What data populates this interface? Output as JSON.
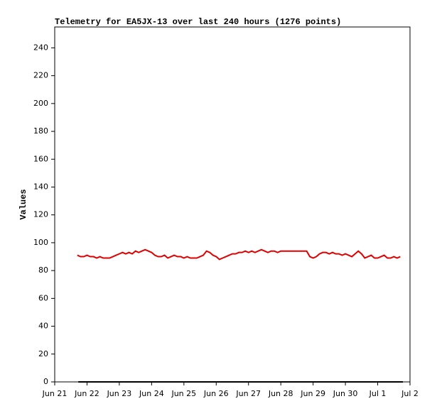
{
  "chart_data": {
    "type": "line",
    "title": "Telemetry for EA5JX-13 over last 240 hours (1276 points)",
    "y_label": "Values",
    "xlim": [
      0,
      11
    ],
    "xticks": [
      {
        "value": 0,
        "label": "Jun 21"
      },
      {
        "value": 1,
        "label": "Jun 22"
      },
      {
        "value": 2,
        "label": "Jun 23"
      },
      {
        "value": 3,
        "label": "Jun 24"
      },
      {
        "value": 4,
        "label": "Jun 25"
      },
      {
        "value": 5,
        "label": "Jun 26"
      },
      {
        "value": 6,
        "label": "Jun 27"
      },
      {
        "value": 7,
        "label": "Jun 28"
      },
      {
        "value": 8,
        "label": "Jun 29"
      },
      {
        "value": 9,
        "label": "Jun 30"
      },
      {
        "value": 10,
        "label": "Jul 1"
      },
      {
        "value": 11,
        "label": "Jul 2"
      }
    ],
    "ylim": [
      0,
      255
    ],
    "yticks": [
      0,
      20,
      40,
      60,
      80,
      100,
      120,
      140,
      160,
      180,
      200,
      220,
      240
    ],
    "series": [
      {
        "color": "#e00000",
        "x": [
          0.7,
          0.8,
          0.9,
          1.0,
          1.1,
          1.2,
          1.3,
          1.4,
          1.5,
          1.6,
          1.7,
          1.8,
          1.9,
          2.0,
          2.1,
          2.2,
          2.3,
          2.4,
          2.5,
          2.6,
          2.7,
          2.8,
          2.9,
          3.0,
          3.1,
          3.2,
          3.3,
          3.4,
          3.5,
          3.6,
          3.7,
          3.8,
          3.9,
          4.0,
          4.1,
          4.2,
          4.3,
          4.4,
          4.5,
          4.6,
          4.7,
          4.8,
          4.9,
          5.0,
          5.1,
          5.2,
          5.3,
          5.4,
          5.5,
          5.6,
          5.7,
          5.8,
          5.9,
          6.0,
          6.1,
          6.2,
          6.3,
          6.4,
          6.5,
          6.6,
          6.7,
          6.8,
          6.9,
          7.0,
          7.1,
          7.2,
          7.3,
          7.4,
          7.5,
          7.6,
          7.7,
          7.8,
          7.9,
          8.0,
          8.1,
          8.2,
          8.3,
          8.4,
          8.5,
          8.6,
          8.7,
          8.8,
          8.9,
          9.0,
          9.1,
          9.2,
          9.3,
          9.4,
          9.5,
          9.6,
          9.7,
          9.8,
          9.9,
          10.0,
          10.1,
          10.2,
          10.3,
          10.4,
          10.5,
          10.6,
          10.7
        ],
        "values": [
          91,
          90,
          90,
          91,
          90,
          90,
          89,
          90,
          89,
          89,
          89,
          90,
          91,
          92,
          93,
          92,
          93,
          92,
          94,
          93,
          94,
          95,
          94,
          93,
          91,
          90,
          90,
          91,
          89,
          90,
          91,
          90,
          90,
          89,
          90,
          89,
          89,
          89,
          90,
          91,
          94,
          93,
          91,
          90,
          88,
          89,
          90,
          91,
          92,
          92,
          93,
          93,
          94,
          93,
          94,
          93,
          94,
          95,
          94,
          93,
          94,
          94,
          93,
          94,
          94,
          94,
          94,
          94,
          94,
          94,
          94,
          94,
          90,
          89,
          90,
          92,
          93,
          93,
          92,
          93,
          92,
          92,
          91,
          92,
          91,
          90,
          92,
          94,
          92,
          89,
          90,
          91,
          89,
          89,
          90,
          91,
          89,
          89,
          90,
          89,
          90
        ]
      },
      {
        "color": "#000000",
        "x": [
          0.73,
          10.78
        ],
        "values": [
          0,
          0
        ]
      }
    ]
  }
}
